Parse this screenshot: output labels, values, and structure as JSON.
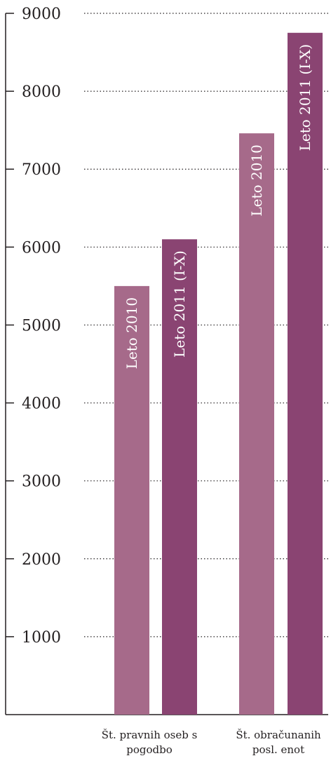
{
  "chart_data": {
    "type": "bar",
    "title": "",
    "xlabel": "",
    "ylabel": "",
    "ylim": [
      0,
      9000
    ],
    "yticks": [
      1000,
      2000,
      3000,
      4000,
      5000,
      6000,
      7000,
      8000,
      9000
    ],
    "grid": true,
    "legend": "none",
    "categories": [
      [
        "Št. pravnih oseb s",
        "pogodbo"
      ],
      [
        "Št. obračunanih",
        "posl. enot"
      ]
    ],
    "bars": [
      {
        "category": 0,
        "value": 5500,
        "label": "Leto 2010",
        "color": "#a66a8a"
      },
      {
        "category": 0,
        "value": 6100,
        "label": "Leto 2011 (I-X)",
        "color": "#8a4472"
      },
      {
        "category": 1,
        "value": 7460,
        "label": "Leto 2010",
        "color": "#a66a8a"
      },
      {
        "category": 1,
        "value": 8750,
        "label": "Leto 2011 (I-X)",
        "color": "#8a4472"
      }
    ]
  }
}
